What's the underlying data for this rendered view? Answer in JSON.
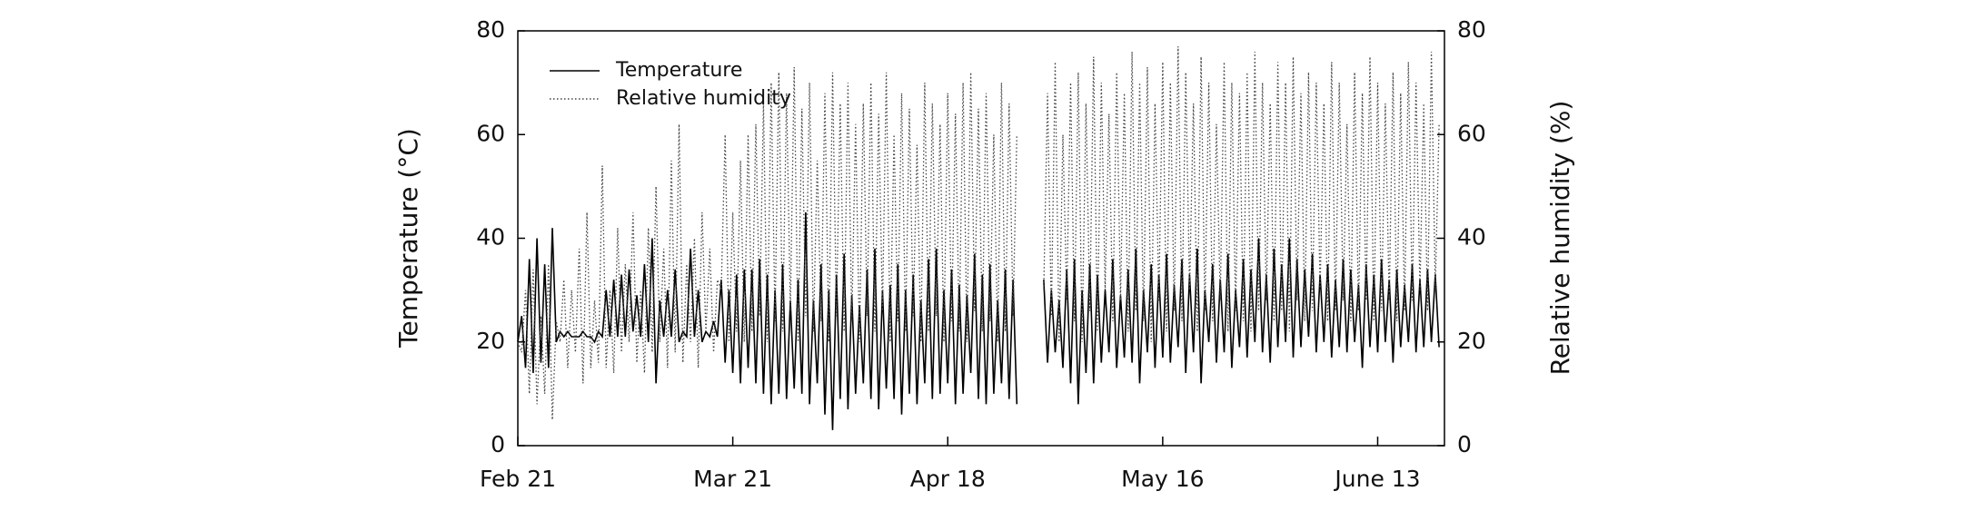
{
  "chart_data": {
    "type": "line",
    "y_label": "Temperature (°C)",
    "y2_label": "Relative humidity (%)",
    "xlim": [
      0,
      120.7
    ],
    "xticks": [
      {
        "value": 0,
        "label": "Feb 21"
      },
      {
        "value": 28,
        "label": "Mar 21"
      },
      {
        "value": 56,
        "label": "Apr 18"
      },
      {
        "value": 84,
        "label": "May 16"
      },
      {
        "value": 112,
        "label": "June 13"
      }
    ],
    "ylim": [
      0,
      80
    ],
    "yticks": [
      0,
      20,
      40,
      60,
      80
    ],
    "y2lim": [
      0,
      80
    ],
    "y2ticks": [
      0,
      20,
      40,
      60,
      80
    ],
    "legend": "upper left",
    "x": [
      0,
      0.5,
      1,
      1.5,
      2,
      2.5,
      3,
      3.5,
      4,
      4.5,
      5,
      5.5,
      6,
      6.5,
      7,
      7.5,
      8,
      8.5,
      9,
      9.5,
      10,
      10.5,
      11,
      11.5,
      12,
      12.5,
      13,
      13.5,
      14,
      14.5,
      15,
      15.5,
      16,
      16.5,
      17,
      17.5,
      18,
      18.5,
      19,
      19.5,
      20,
      20.5,
      21,
      21.5,
      22,
      22.5,
      23,
      23.5,
      24,
      24.5,
      25,
      25.5,
      26,
      26.5,
      27,
      27.5,
      28,
      28.5,
      29,
      29.5,
      30,
      30.5,
      31,
      31.5,
      32,
      32.5,
      33,
      33.5,
      34,
      34.5,
      35,
      35.5,
      36,
      36.5,
      37,
      37.5,
      38,
      38.5,
      39,
      39.5,
      40,
      40.5,
      41,
      41.5,
      42,
      42.5,
      43,
      43.5,
      44,
      44.5,
      45,
      45.5,
      46,
      46.5,
      47,
      47.5,
      48,
      48.5,
      49,
      49.5,
      50,
      50.5,
      51,
      51.5,
      52,
      52.5,
      53,
      53.5,
      54,
      54.5,
      55,
      55.5,
      56,
      56.5,
      57,
      57.5,
      58,
      58.5,
      59,
      59.5,
      60,
      60.5,
      61,
      61.5,
      62,
      62.5,
      63,
      63.5,
      64,
      64.5,
      65,
      65.5,
      66,
      66.5,
      67,
      67.5,
      68,
      68.5,
      69,
      69.5,
      70,
      70.5,
      71,
      71.5,
      72,
      72.5,
      73,
      73.5,
      74,
      74.5,
      75,
      75.5,
      76,
      76.5,
      77,
      77.5,
      78,
      78.5,
      79,
      79.5,
      80,
      80.5,
      81,
      81.5,
      82,
      82.5,
      83,
      83.5,
      84,
      84.5,
      85,
      85.5,
      86,
      86.5,
      87,
      87.5,
      88,
      88.5,
      89,
      89.5,
      90,
      90.5,
      91,
      91.5,
      92,
      92.5,
      93,
      93.5,
      94,
      94.5,
      95,
      95.5,
      96,
      96.5,
      97,
      97.5,
      98,
      98.5,
      99,
      99.5,
      100,
      100.5,
      101,
      101.5,
      102,
      102.5,
      103,
      103.5,
      104,
      104.5,
      105,
      105.5,
      106,
      106.5,
      107,
      107.5,
      108,
      108.5,
      109,
      109.5,
      110,
      110.5,
      111,
      111.5,
      112,
      112.5,
      113,
      113.5,
      114,
      114.5,
      115,
      115.5,
      116,
      116.5,
      117,
      117.5,
      118,
      118.5,
      119,
      119.5,
      120
    ],
    "series": [
      {
        "name": "Temperature",
        "color": "#000000",
        "style": "solid",
        "axis": "y",
        "values": [
          20,
          25,
          15,
          36,
          14,
          40,
          16,
          35,
          15,
          42,
          20,
          22,
          21,
          22,
          21,
          21,
          21,
          22,
          21,
          21,
          20,
          22,
          21,
          30,
          21,
          32,
          21,
          33,
          21,
          34,
          22,
          29,
          21,
          35,
          20,
          40,
          12,
          28,
          21,
          30,
          21,
          34,
          20,
          22,
          21,
          38,
          21,
          30,
          20,
          22,
          21,
          24,
          21,
          32,
          16,
          30,
          14,
          33,
          12,
          34,
          15,
          34,
          12,
          36,
          10,
          33,
          8,
          30,
          10,
          35,
          9,
          28,
          11,
          32,
          10,
          45,
          8,
          28,
          12,
          35,
          6,
          30,
          3,
          33,
          9,
          37,
          7,
          29,
          10,
          27,
          12,
          34,
          9,
          38,
          7,
          30,
          11,
          31,
          9,
          35,
          6,
          30,
          10,
          33,
          8,
          28,
          12,
          36,
          9,
          38,
          10,
          30,
          12,
          34,
          8,
          31,
          10,
          29,
          14,
          37,
          9,
          33,
          8,
          35,
          10,
          28,
          12,
          34,
          9,
          32,
          8,
          null,
          null,
          null,
          null,
          null,
          null,
          32,
          16,
          30,
          18,
          28,
          15,
          34,
          12,
          36,
          8,
          30,
          14,
          35,
          12,
          33,
          16,
          30,
          18,
          36,
          15,
          29,
          17,
          34,
          16,
          38,
          12,
          30,
          18,
          35,
          15,
          33,
          17,
          37,
          16,
          31,
          19,
          36,
          14,
          33,
          18,
          38,
          12,
          30,
          20,
          35,
          16,
          32,
          18,
          37,
          15,
          30,
          19,
          36,
          17,
          34,
          20,
          40,
          18,
          33,
          16,
          38,
          19,
          35,
          20,
          40,
          17,
          36,
          19,
          34,
          21,
          37,
          18,
          33,
          20,
          35,
          17,
          32,
          19,
          36,
          18,
          34,
          20,
          31,
          15,
          35,
          19,
          33,
          18,
          36,
          20,
          32,
          16,
          34,
          19,
          31,
          20,
          35,
          18,
          32,
          19,
          34,
          20,
          33,
          19
        ]
      },
      {
        "name": "Relative humidity",
        "color": "#444444",
        "style": "dotted",
        "axis": "y2",
        "values": [
          20,
          18,
          30,
          10,
          34,
          8,
          25,
          10,
          35,
          5,
          24,
          20,
          32,
          15,
          30,
          18,
          38,
          12,
          45,
          15,
          28,
          16,
          54,
          15,
          30,
          14,
          42,
          18,
          35,
          20,
          45,
          16,
          30,
          14,
          42,
          18,
          50,
          20,
          38,
          15,
          55,
          18,
          62,
          16,
          35,
          20,
          40,
          15,
          45,
          22,
          38,
          18,
          32,
          30,
          60,
          20,
          45,
          22,
          55,
          20,
          60,
          22,
          62,
          25,
          66,
          20,
          70,
          24,
          72,
          22,
          68,
          26,
          73,
          20,
          65,
          25,
          70,
          22,
          55,
          24,
          68,
          20,
          72,
          25,
          66,
          22,
          70,
          24,
          62,
          20,
          66,
          25,
          70,
          22,
          64,
          26,
          72,
          20,
          60,
          24,
          68,
          22,
          65,
          25,
          58,
          20,
          70,
          22,
          66,
          25,
          62,
          20,
          68,
          24,
          64,
          22,
          70,
          20,
          72,
          26,
          65,
          22,
          68,
          24,
          60,
          20,
          70,
          22,
          66,
          25,
          60,
          null,
          null,
          null,
          null,
          null,
          null,
          30,
          68,
          25,
          74,
          20,
          60,
          28,
          70,
          24,
          72,
          20,
          66,
          26,
          75,
          22,
          70,
          30,
          64,
          24,
          72,
          28,
          68,
          22,
          76,
          26,
          70,
          24,
          73,
          20,
          66,
          28,
          74,
          22,
          70,
          26,
          77,
          24,
          72,
          30,
          66,
          22,
          75,
          26,
          70,
          24,
          62,
          28,
          74,
          22,
          70,
          26,
          68,
          24,
          72,
          22,
          76,
          26,
          70,
          28,
          66,
          24,
          74,
          26,
          70,
          22,
          75,
          28,
          68,
          24,
          72,
          26,
          70,
          30,
          66,
          24,
          74,
          26,
          70,
          28,
          62,
          24,
          72,
          26,
          68,
          28,
          75,
          24,
          70,
          26,
          66,
          28,
          72,
          24,
          68,
          26,
          74,
          28,
          70,
          30,
          66,
          26,
          76,
          30,
          62
        ]
      }
    ]
  }
}
